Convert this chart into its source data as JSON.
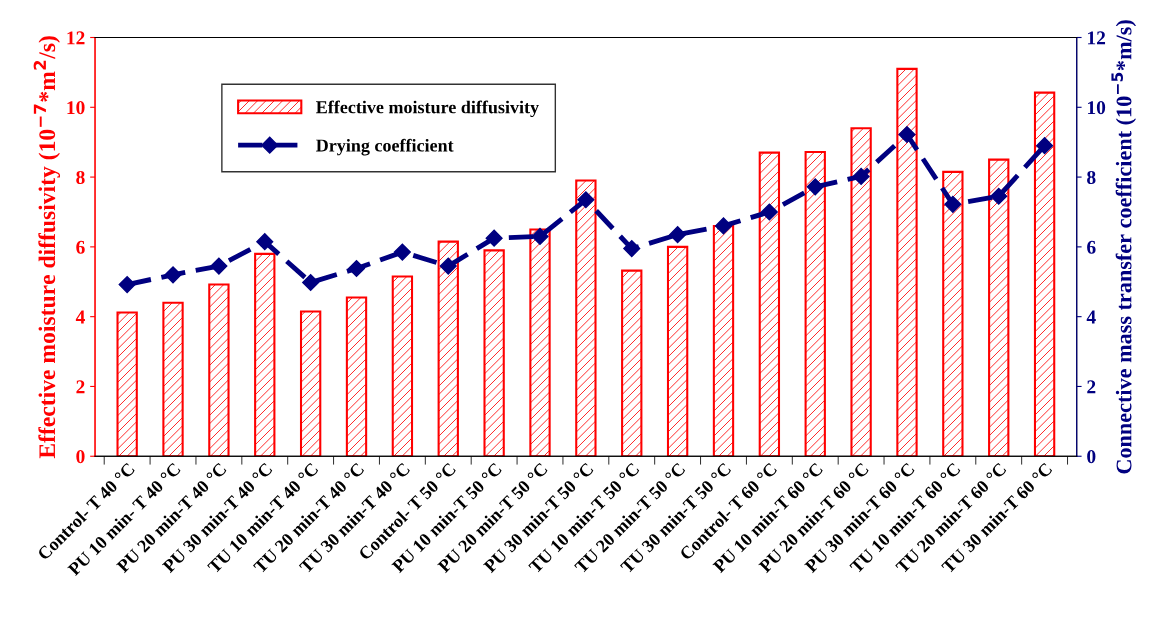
{
  "chart_data": {
    "type": "bar",
    "categories": [
      "Control- T 40 °C",
      "PU 10 min- T 40 °C",
      "PU 20 min-T 40 °C",
      "PU 30 min-T 40 °C",
      "TU 10 min-T 40 °C",
      "TU 20 min-T 40 °C",
      "TU 30 min-T 40 °C",
      "Control- T 50 °C",
      "PU 10 min-T 50 °C",
      "PU 20 min-T 50 °C",
      "PU 30 min-T 50 °C",
      "TU 10 min-T 50 °C",
      "TU 20 min-T 50 °C",
      "TU 30 min-T 50 °C",
      "Control- T 60 °C",
      "PU 10 min-T 60 °C",
      "PU 20 min-T 60 °C",
      "PU 30 min-T 60 °C",
      "TU 10 min-T 60 °C",
      "TU 20 min-T 60 °C",
      "TU 30 min-T 60 °C"
    ],
    "ylabel": "Effective moisture diffusivity (10$^{−7}$*m$^{2}$/s)",
    "y2label": "Connective mass transfer coefficient (10$^{−5}$*m/s)",
    "ylim": [
      0,
      12
    ],
    "yticks": [
      0,
      2,
      4,
      6,
      8,
      10,
      12
    ],
    "y2lim": [
      0,
      12
    ],
    "y2ticks": [
      0,
      2,
      4,
      6,
      8,
      10,
      12
    ],
    "legend": "top left",
    "grid": false,
    "series": [
      {
        "name": "Effective moisture diffusivity",
        "color": "#ff0000",
        "values": [
          4.12,
          4.4,
          4.92,
          5.8,
          4.15,
          4.55,
          5.15,
          6.15,
          5.9,
          6.5,
          7.9,
          5.32,
          6.0,
          6.6,
          8.7,
          8.72,
          9.4,
          11.1,
          8.15,
          8.5,
          10.42
        ]
      },
      {
        "name": "Drying coefficient",
        "type": "line",
        "axis": "y2",
        "color": "#000080",
        "marker": "diamond",
        "line_style": "dashed",
        "values": [
          4.92,
          5.2,
          5.45,
          6.15,
          4.98,
          5.38,
          5.85,
          5.45,
          6.25,
          6.3,
          7.35,
          5.95,
          6.35,
          6.6,
          7.0,
          7.72,
          8.02,
          9.22,
          7.22,
          7.45,
          8.9
        ]
      }
    ]
  }
}
